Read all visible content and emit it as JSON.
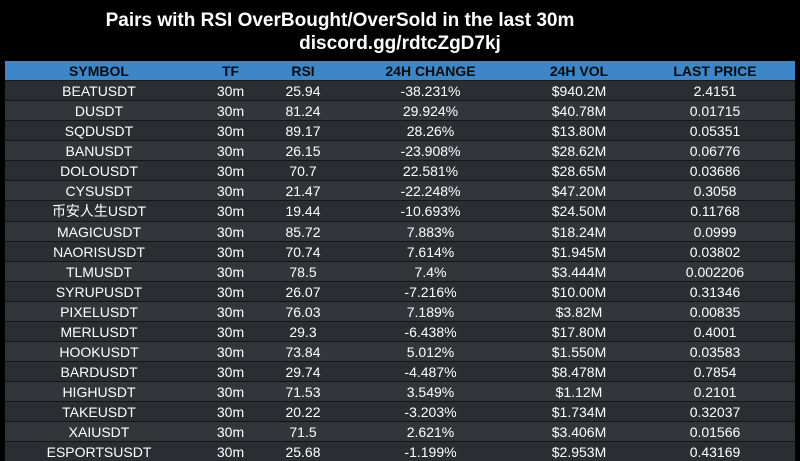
{
  "header": {
    "title": "Pairs with RSI OverBought/OverSold in the last 30m",
    "link": "discord.gg/rdtcZgD7kj"
  },
  "table": {
    "columns": [
      "SYMBOL",
      "TF",
      "RSI",
      "24H CHANGE",
      "24H VOL",
      "LAST PRICE"
    ],
    "rows": [
      [
        "BEATUSDT",
        "30m",
        "25.94",
        "-38.231%",
        "$940.2M",
        "2.4151"
      ],
      [
        "DUSDT",
        "30m",
        "81.24",
        "29.924%",
        "$40.78M",
        "0.01715"
      ],
      [
        "SQDUSDT",
        "30m",
        "89.17",
        "28.26%",
        "$13.80M",
        "0.05351"
      ],
      [
        "BANUSDT",
        "30m",
        "26.15",
        "-23.908%",
        "$28.62M",
        "0.06776"
      ],
      [
        "DOLOUSDT",
        "30m",
        "70.7",
        "22.581%",
        "$28.65M",
        "0.03686"
      ],
      [
        "CYSUSDT",
        "30m",
        "21.47",
        "-22.248%",
        "$47.20M",
        "0.3058"
      ],
      [
        "币安人生USDT",
        "30m",
        "19.44",
        "-10.693%",
        "$24.50M",
        "0.11768"
      ],
      [
        "MAGICUSDT",
        "30m",
        "85.72",
        "7.883%",
        "$18.24M",
        "0.0999"
      ],
      [
        "NAORISUSDT",
        "30m",
        "70.74",
        "7.614%",
        "$1.945M",
        "0.03802"
      ],
      [
        "TLMUSDT",
        "30m",
        "78.5",
        "7.4%",
        "$3.444M",
        "0.002206"
      ],
      [
        "SYRUPUSDT",
        "30m",
        "26.07",
        "-7.216%",
        "$10.00M",
        "0.31346"
      ],
      [
        "PIXELUSDT",
        "30m",
        "76.03",
        "7.189%",
        "$3.82M",
        "0.00835"
      ],
      [
        "MERLUSDT",
        "30m",
        "29.3",
        "-6.438%",
        "$17.80M",
        "0.4001"
      ],
      [
        "HOOKUSDT",
        "30m",
        "73.84",
        "5.012%",
        "$1.550M",
        "0.03583"
      ],
      [
        "BARDUSDT",
        "30m",
        "29.74",
        "-4.487%",
        "$8.478M",
        "0.7854"
      ],
      [
        "HIGHUSDT",
        "30m",
        "71.53",
        "3.549%",
        "$1.12M",
        "0.2101"
      ],
      [
        "TAKEUSDT",
        "30m",
        "20.22",
        "-3.203%",
        "$1.734M",
        "0.32037"
      ],
      [
        "XAIUSDT",
        "30m",
        "71.5",
        "2.621%",
        "$3.406M",
        "0.01566"
      ],
      [
        "ESPORTSUSDT",
        "30m",
        "25.68",
        "-1.199%",
        "$2.953M",
        "0.43169"
      ]
    ]
  }
}
